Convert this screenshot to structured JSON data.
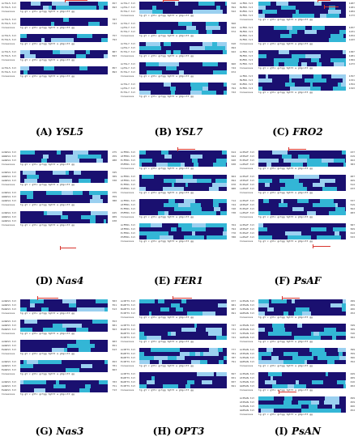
{
  "colors": {
    "identical": "#1a1070",
    "similar": "#33b6d6",
    "partial": "#9bd0f0",
    "marker": "#d8352f"
  },
  "panels": [
    {
      "id": "A",
      "letter": "(A)",
      "gene": "YSL5",
      "rows": [
        "AcYSL5.txt",
        "EcYSL5.txt",
        "Consensus"
      ],
      "blocks": 5,
      "nums": [
        "657",
        "693",
        "",
        "707",
        "743",
        "",
        "757",
        "793",
        "",
        "807",
        "843",
        "",
        "857",
        "893",
        ""
      ]
    },
    {
      "id": "B",
      "letter": "(B)",
      "gene": "YSL7",
      "rows": [
        "AcYSL7.txt",
        "LpYSL7.txt",
        "EcYSL7.txt",
        "Consensus"
      ],
      "blocks": 5,
      "nums": [
        "510",
        "594",
        "522",
        "",
        "560",
        "644",
        "572",
        "",
        "610",
        "694",
        "622",
        "",
        "660",
        "744",
        "672",
        "",
        "710",
        "794",
        "722",
        ""
      ]
    },
    {
      "id": "C",
      "letter": "(C)",
      "gene": "FRO2",
      "rows": [
        "AcFRO.txt",
        "MsFRO.txt",
        "BnFRO.txt",
        "PvFRO.txt",
        "Consensus"
      ],
      "blocks": 4,
      "nums": [
        "1207",
        "1181",
        "1204",
        "1173",
        "",
        "1257",
        "1231",
        "1254",
        "1223",
        "",
        "1307",
        "1281",
        "1304",
        "1273",
        "",
        "1357",
        "1331",
        "1354",
        "1323",
        ""
      ]
    },
    {
      "id": "D",
      "letter": "(D)",
      "gene": "Nas4",
      "rows": [
        "AcNAS4.txt",
        "AmNAS4.txt",
        "AsNAS4.txt",
        "Consensus"
      ],
      "blocks": 4,
      "nums": [
        "275",
        "259",
        "280",
        "",
        "325",
        "309",
        "330",
        "",
        "375",
        "359",
        "380",
        "",
        "425",
        "409",
        "430",
        ""
      ]
    },
    {
      "id": "E",
      "letter": "(E)",
      "gene": "FER1",
      "rows": [
        "AcFER1.txt",
        "AtFER1.txt",
        "EcFER1.txt",
        "PhFER1.txt",
        "Consensus"
      ],
      "blocks": 4,
      "nums": [
        "614",
        "644",
        "620",
        "638",
        "",
        "664",
        "694",
        "670",
        "688",
        "",
        "714",
        "744",
        "720",
        "738",
        "",
        "764",
        "794",
        "770",
        "788",
        ""
      ]
    },
    {
      "id": "F",
      "letter": "(F)",
      "gene": "PsAF",
      "rows": [
        "AcPSAF.txt",
        "AtPSAF.txt",
        "EcPSAF.txt",
        "LsPSAF.txt",
        "Consensus"
      ],
      "blocks": 4,
      "nums": [
        "437",
        "419",
        "462",
        "383",
        "",
        "487",
        "469",
        "512",
        "433",
        "",
        "537",
        "519",
        "562",
        "483",
        "",
        "587",
        "569",
        "612",
        "533",
        ""
      ]
    },
    {
      "id": "G",
      "letter": "(G)",
      "gene": "Nas3",
      "rows": [
        "AcNAS3.txt",
        "AsNAS3.txt",
        "EsNAS3.txt",
        "Consensus"
      ],
      "blocks": 5,
      "nums": [
        "503",
        "551",
        "513",
        "",
        "553",
        "601",
        "563",
        "",
        "603",
        "651",
        "613",
        "",
        "653",
        "701",
        "663",
        "",
        "703",
        "751",
        "713",
        ""
      ]
    },
    {
      "id": "H",
      "letter": "(H)",
      "gene": "OPT3",
      "rows": [
        "AcOPT3.txt",
        "BnOPT3.txt",
        "BoOPT3.txt",
        "EcOPT3.txt",
        "Consensus"
      ],
      "blocks": 4,
      "nums": [
        "677",
        "681",
        "687",
        "691",
        "",
        "727",
        "731",
        "737",
        "741",
        "",
        "777",
        "781",
        "787",
        "791",
        "",
        "827",
        "831",
        "837",
        "841",
        ""
      ]
    },
    {
      "id": "I",
      "letter": "(I)",
      "gene": "PsAN",
      "rows": [
        "AcPSAN.txt",
        "AtPSAN.txt",
        "VvPSAN.txt",
        "GmPSAN.txt",
        "Consensus"
      ],
      "blocks": 5,
      "nums": [
        "299",
        "259",
        "266",
        "252",
        "",
        "349",
        "309",
        "316",
        "302",
        "",
        "399",
        "359",
        "366",
        "352",
        "",
        "449",
        "409",
        "416",
        "402",
        "",
        "499",
        "459",
        "466",
        "452",
        ""
      ]
    }
  ],
  "consensus_text": "tg gt  c  gttc gctgg  tgttt  a  gtgcctt  gg"
}
